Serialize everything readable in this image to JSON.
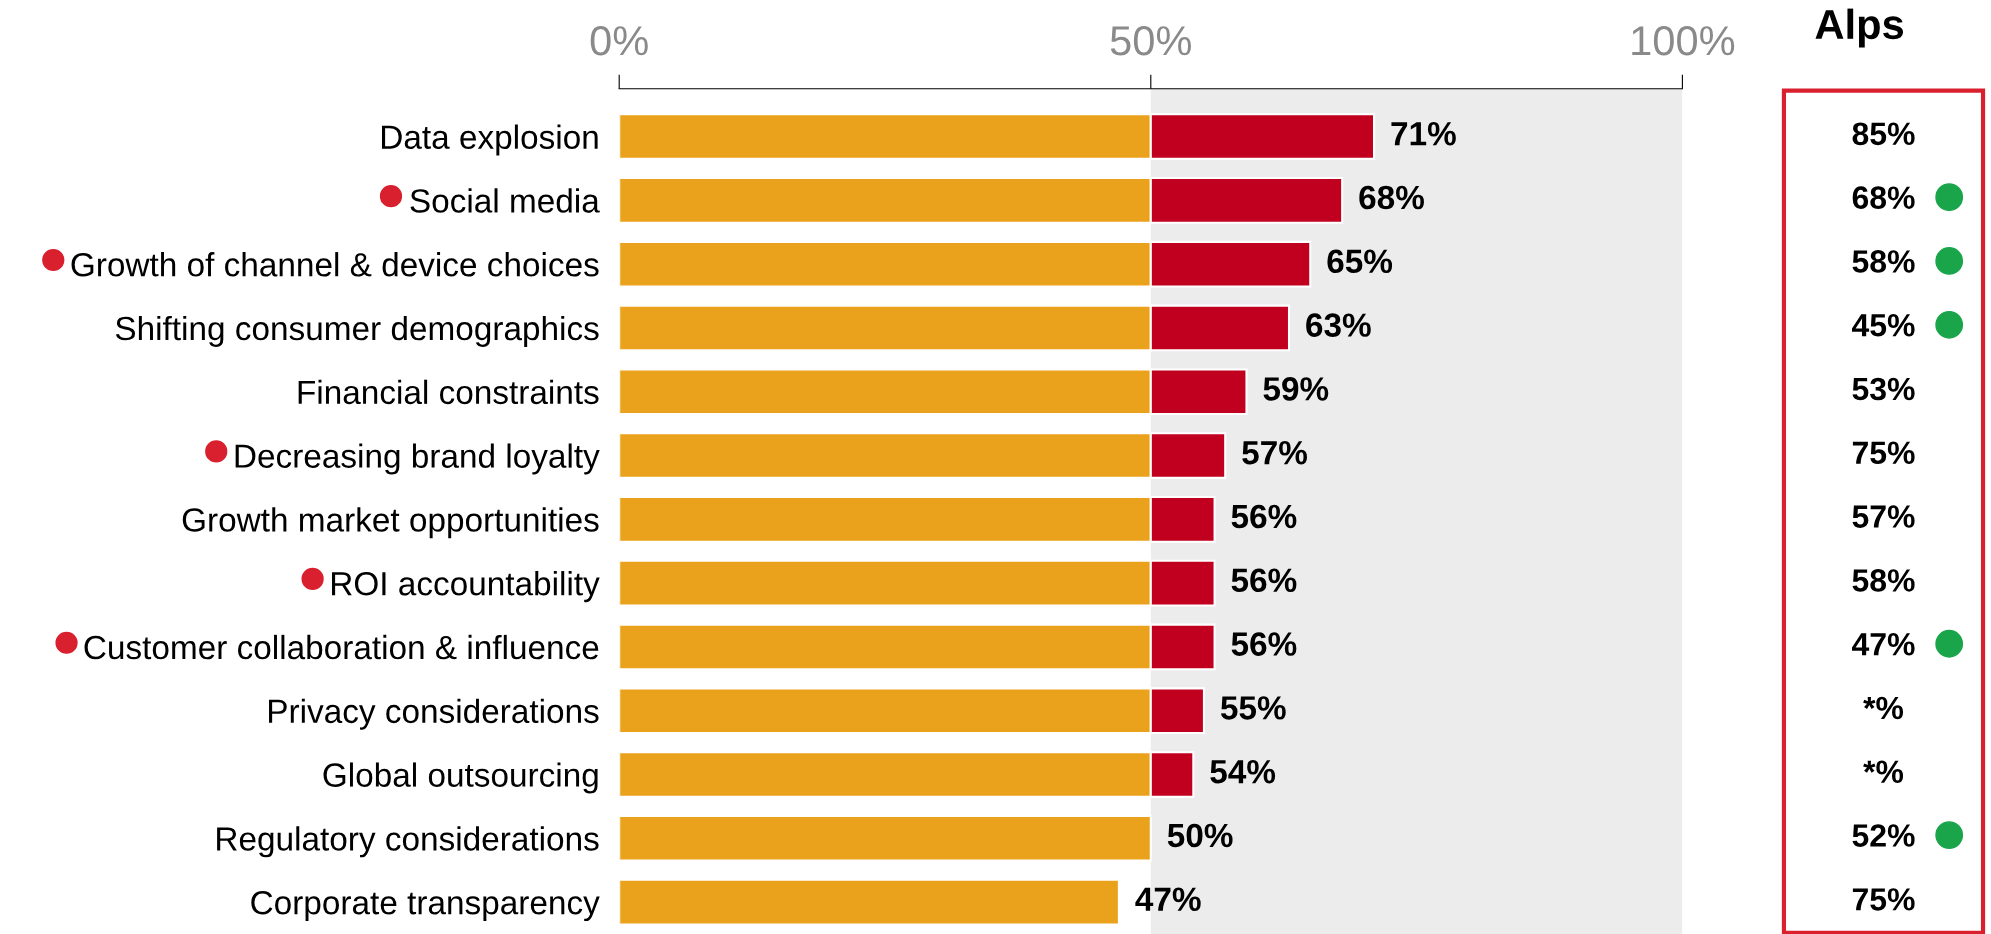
{
  "chart_data": [
    {
      "type": "bar",
      "orientation": "horizontal",
      "stacked": true,
      "categories": [
        "Data explosion",
        "Social media",
        "Growth of channel & device choices",
        "Shifting consumer demographics",
        "Financial constraints",
        "Decreasing brand loyalty",
        "Growth market opportunities",
        "ROI accountability",
        "Customer collaboration & influence",
        "Privacy considerations",
        "Global outsourcing",
        "Regulatory considerations",
        "Corporate transparency"
      ],
      "series": [
        {
          "color": "#eaa11c",
          "values": [
            50,
            50,
            50,
            50,
            50,
            50,
            50,
            50,
            50,
            50,
            50,
            50,
            47
          ]
        },
        {
          "color": "#c0001e",
          "values": [
            21,
            18,
            15,
            13,
            9,
            7,
            6,
            6,
            6,
            5,
            4,
            null,
            null
          ]
        }
      ],
      "totals": [
        "71%",
        "68%",
        "65%",
        "63%",
        "59%",
        "57%",
        "56%",
        "56%",
        "56%",
        "55%",
        "54%",
        "50%",
        "47%"
      ],
      "xlim": [
        0,
        100
      ],
      "xticks": [
        {
          "value": 0,
          "label": "0%"
        },
        {
          "value": 50,
          "label": "50%"
        },
        {
          "value": 100,
          "label": "100%"
        }
      ],
      "bands": [
        {
          "axis": "x",
          "from": 50,
          "to": 100,
          "color": "#ececec"
        }
      ],
      "grid": false
    },
    {
      "type": "other",
      "title": "Alps",
      "annotations": [
        "85%",
        "68%",
        "58%",
        "45%",
        "53%",
        "75%",
        "57%",
        "58%",
        "47%",
        "*%",
        "*%",
        "52%",
        "75%"
      ]
    }
  ]
}
